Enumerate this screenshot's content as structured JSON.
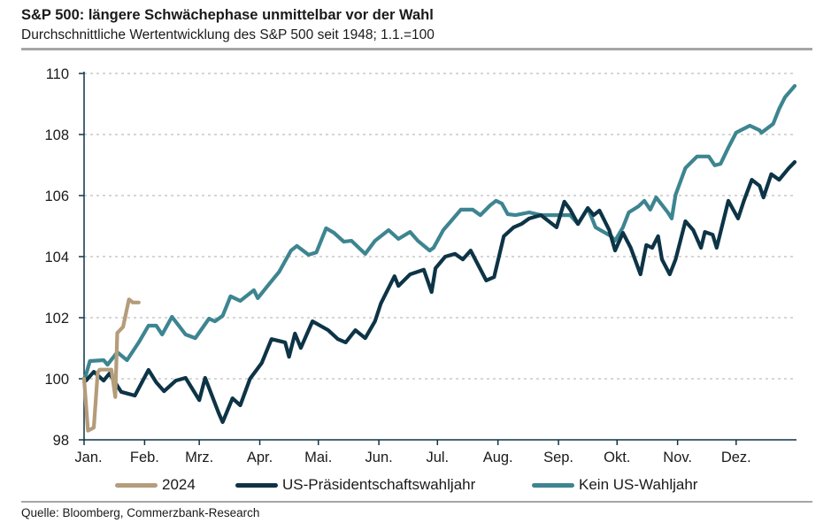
{
  "title": "S&P 500: längere Schwächephase unmittelbar vor der Wahl",
  "subtitle": "Durchschnittliche Wertentwicklung des S&P 500 seit 1948; 1.1.=100",
  "source": "Quelle: Bloomberg, Commerzbank-Research",
  "chart_data": {
    "type": "line",
    "title": "S&P 500: längere Schwächephase unmittelbar vor der Wahl",
    "subtitle": "Durchschnittliche Wertentwicklung des S&P 500 seit 1948; 1.1.=100",
    "xlabel": "",
    "ylabel": "",
    "x_tick_labels": [
      "Jan.",
      "Feb.",
      "Mrz.",
      "Apr.",
      "Mai.",
      "Jun.",
      "Jul.",
      "Aug.",
      "Sep.",
      "Okt.",
      "Nov.",
      "Dez."
    ],
    "y_ticks": [
      98,
      100,
      102,
      104,
      106,
      108,
      110
    ],
    "ylim": [
      98,
      110
    ],
    "grid": "horizontal dashed",
    "legend": "bottom",
    "series": [
      {
        "name": "2024",
        "color": "#b59c7a",
        "points": [
          [
            "01-01",
            100
          ],
          [
            "01-03",
            98.3
          ],
          [
            "01-06",
            98.4
          ],
          [
            "01-08",
            100.2
          ],
          [
            "01-09",
            100.3
          ],
          [
            "01-15",
            100.3
          ],
          [
            "01-17",
            99.4
          ],
          [
            "01-18",
            101.5
          ],
          [
            "01-21",
            101.7
          ],
          [
            "01-24",
            102.6
          ],
          [
            "01-26",
            102.5
          ],
          [
            "01-29",
            102.5
          ]
        ]
      },
      {
        "name": "US-Präsidentschaftswahljahr",
        "color": "#0d3446",
        "points": [
          [
            "01-01",
            100
          ],
          [
            "01-02",
            99.94
          ],
          [
            "01-06",
            100.23
          ],
          [
            "01-11",
            99.94
          ],
          [
            "01-14",
            100.17
          ],
          [
            "01-20",
            99.57
          ],
          [
            "01-27",
            99.45
          ],
          [
            "02-03",
            100.29
          ],
          [
            "02-07",
            99.88
          ],
          [
            "02-11",
            99.59
          ],
          [
            "02-17",
            99.94
          ],
          [
            "02-22",
            100.03
          ],
          [
            "03-01",
            99.3
          ],
          [
            "03-04",
            100.03
          ],
          [
            "03-11",
            98.87
          ],
          [
            "03-13",
            98.58
          ],
          [
            "03-18",
            99.36
          ],
          [
            "03-22",
            99.13
          ],
          [
            "03-27",
            100
          ],
          [
            "04-02",
            100.52
          ],
          [
            "04-07",
            101.3
          ],
          [
            "04-14",
            101.19
          ],
          [
            "04-16",
            100.72
          ],
          [
            "04-19",
            101.48
          ],
          [
            "04-22",
            101.01
          ],
          [
            "04-28",
            101.88
          ],
          [
            "05-06",
            101.59
          ],
          [
            "05-11",
            101.3
          ],
          [
            "05-15",
            101.19
          ],
          [
            "05-20",
            101.59
          ],
          [
            "05-25",
            101.33
          ],
          [
            "05-30",
            101.88
          ],
          [
            "06-02",
            102.46
          ],
          [
            "06-09",
            103.36
          ],
          [
            "06-11",
            103.04
          ],
          [
            "06-17",
            103.42
          ],
          [
            "06-24",
            103.57
          ],
          [
            "06-28",
            102.84
          ],
          [
            "06-30",
            103.62
          ],
          [
            "07-05",
            104.0
          ],
          [
            "07-10",
            104.09
          ],
          [
            "07-14",
            103.91
          ],
          [
            "07-18",
            104.2
          ],
          [
            "07-22",
            103.71
          ],
          [
            "07-26",
            103.22
          ],
          [
            "07-30",
            103.33
          ],
          [
            "08-04",
            104.67
          ],
          [
            "08-09",
            104.96
          ],
          [
            "08-13",
            105.07
          ],
          [
            "08-17",
            105.25
          ],
          [
            "08-23",
            105.36
          ],
          [
            "08-31",
            104.96
          ],
          [
            "09-04",
            105.8
          ],
          [
            "09-07",
            105.54
          ],
          [
            "09-11",
            105.07
          ],
          [
            "09-16",
            105.59
          ],
          [
            "09-19",
            105.36
          ],
          [
            "09-22",
            105.51
          ],
          [
            "09-27",
            104.87
          ],
          [
            "09-30",
            104.2
          ],
          [
            "10-04",
            104.78
          ],
          [
            "10-08",
            104.29
          ],
          [
            "10-13",
            103.42
          ],
          [
            "10-16",
            104.38
          ],
          [
            "10-19",
            104.29
          ],
          [
            "10-22",
            104.67
          ],
          [
            "10-24",
            103.91
          ],
          [
            "10-28",
            103.42
          ],
          [
            "10-31",
            103.91
          ],
          [
            "11-05",
            105.16
          ],
          [
            "11-09",
            104.87
          ],
          [
            "11-13",
            104.29
          ],
          [
            "11-15",
            104.81
          ],
          [
            "11-19",
            104.72
          ],
          [
            "11-21",
            104.29
          ],
          [
            "11-27",
            105.83
          ],
          [
            "12-02",
            105.25
          ],
          [
            "12-05",
            105.83
          ],
          [
            "12-09",
            106.52
          ],
          [
            "12-13",
            106.32
          ],
          [
            "12-15",
            105.94
          ],
          [
            "12-19",
            106.7
          ],
          [
            "12-23",
            106.52
          ],
          [
            "12-28",
            106.9
          ],
          [
            "12-31",
            107.1
          ]
        ]
      },
      {
        "name": "Kein US-Wahljahr",
        "color": "#3d8590",
        "points": [
          [
            "01-01",
            100
          ],
          [
            "01-02",
            100.14
          ],
          [
            "01-04",
            100.58
          ],
          [
            "01-11",
            100.61
          ],
          [
            "01-13",
            100.46
          ],
          [
            "01-18",
            100.87
          ],
          [
            "01-23",
            100.61
          ],
          [
            "01-29",
            101.19
          ],
          [
            "02-03",
            101.74
          ],
          [
            "02-07",
            101.74
          ],
          [
            "02-10",
            101.45
          ],
          [
            "02-15",
            102.03
          ],
          [
            "02-22",
            101.45
          ],
          [
            "02-27",
            101.33
          ],
          [
            "03-06",
            101.97
          ],
          [
            "03-09",
            101.88
          ],
          [
            "03-13",
            102.06
          ],
          [
            "03-17",
            102.7
          ],
          [
            "03-22",
            102.55
          ],
          [
            "03-29",
            102.9
          ],
          [
            "03-31",
            102.64
          ],
          [
            "04-05",
            103.04
          ],
          [
            "04-11",
            103.51
          ],
          [
            "04-17",
            104.2
          ],
          [
            "04-20",
            104.35
          ],
          [
            "04-26",
            104.06
          ],
          [
            "04-30",
            104.14
          ],
          [
            "05-05",
            104.93
          ],
          [
            "05-09",
            104.78
          ],
          [
            "05-14",
            104.49
          ],
          [
            "05-18",
            104.52
          ],
          [
            "05-25",
            104.09
          ],
          [
            "05-30",
            104.52
          ],
          [
            "06-06",
            104.87
          ],
          [
            "06-11",
            104.58
          ],
          [
            "06-17",
            104.81
          ],
          [
            "06-21",
            104.52
          ],
          [
            "06-27",
            104.2
          ],
          [
            "06-29",
            104.29
          ],
          [
            "07-04",
            104.87
          ],
          [
            "07-13",
            105.54
          ],
          [
            "07-19",
            105.54
          ],
          [
            "07-23",
            105.36
          ],
          [
            "07-28",
            105.68
          ],
          [
            "07-31",
            105.83
          ],
          [
            "08-03",
            105.74
          ],
          [
            "08-06",
            105.39
          ],
          [
            "08-10",
            105.36
          ],
          [
            "08-17",
            105.45
          ],
          [
            "08-23",
            105.36
          ],
          [
            "08-30",
            105.36
          ],
          [
            "09-07",
            105.36
          ],
          [
            "09-11",
            105.07
          ],
          [
            "09-16",
            105.59
          ],
          [
            "09-20",
            104.96
          ],
          [
            "09-28",
            104.67
          ],
          [
            "09-30",
            104.52
          ],
          [
            "10-04",
            104.96
          ],
          [
            "10-07",
            105.45
          ],
          [
            "10-12",
            105.65
          ],
          [
            "10-15",
            105.83
          ],
          [
            "10-18",
            105.54
          ],
          [
            "10-21",
            105.94
          ],
          [
            "10-27",
            105.45
          ],
          [
            "10-29",
            105.25
          ],
          [
            "10-31",
            106.03
          ],
          [
            "11-05",
            106.9
          ],
          [
            "11-11",
            107.28
          ],
          [
            "11-17",
            107.28
          ],
          [
            "11-20",
            106.99
          ],
          [
            "11-23",
            107.04
          ],
          [
            "11-27",
            107.57
          ],
          [
            "12-01",
            108.06
          ],
          [
            "12-08",
            108.29
          ],
          [
            "12-13",
            108.14
          ],
          [
            "12-14",
            108.06
          ],
          [
            "12-20",
            108.35
          ],
          [
            "12-23",
            108.84
          ],
          [
            "12-26",
            109.22
          ],
          [
            "12-31",
            109.59
          ]
        ]
      }
    ]
  }
}
